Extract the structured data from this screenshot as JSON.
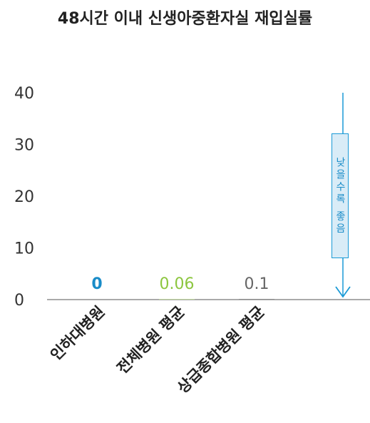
{
  "chart_data": {
    "type": "bar",
    "title": "48시간 이내 신생아중환자실 재입실률",
    "categories": [
      "인하대병원",
      "전체병원 평균",
      "상급종합병원 평균"
    ],
    "values": [
      0,
      0.06,
      0.1
    ],
    "value_labels": [
      "0",
      "0.06",
      "0.1"
    ],
    "ylim": [
      0,
      40
    ],
    "yticks": [
      "0",
      "10",
      "20",
      "30",
      "40"
    ],
    "colors": [
      "#1a8cc8",
      "#8cc63f",
      "#666666"
    ],
    "grid": false,
    "annotation": "낮을수록 좋음",
    "annotation_color": "#1a9ad6"
  }
}
